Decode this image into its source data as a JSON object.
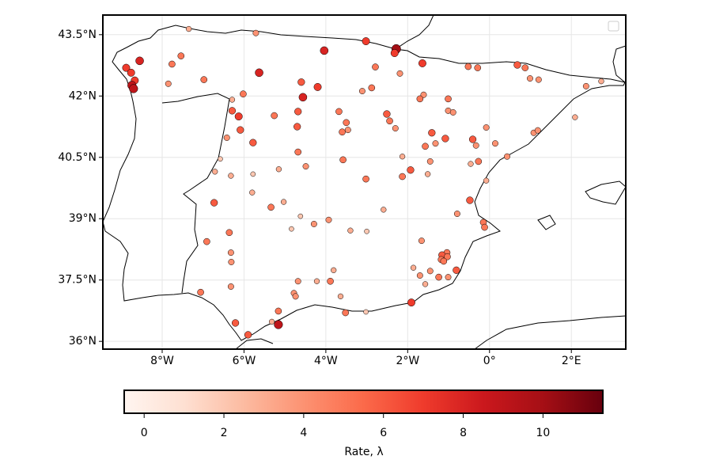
{
  "chart_data": {
    "type": "scatter",
    "x": [
      -7.35,
      -5.71,
      -3.02,
      -4.04,
      -2.28,
      -2.32,
      -1.64,
      -0.52,
      -0.29,
      0.68,
      0.87,
      0.99,
      1.2,
      2.36,
      2.73,
      -8.55,
      -8.88,
      -8.76,
      -8.67,
      -8.74,
      -8.7,
      -7.76,
      -7.54,
      -7.85,
      -6.98,
      -5.63,
      -4.6,
      -4.2,
      -4.56,
      -6.02,
      -6.29,
      -2.79,
      -2.19,
      -2.88,
      -3.11,
      -1.61,
      -1.7,
      -1.01,
      -6.29,
      -6.13,
      -5.26,
      -4.68,
      -3.68,
      -2.51,
      -2.44,
      -3.5,
      -3.46,
      -3.6,
      -2.3,
      -4.7,
      -6.09,
      -1.01,
      -0.89,
      -0.08,
      -1.41,
      -1.08,
      -1.32,
      -1.57,
      -0.41,
      -0.33,
      0.14,
      1.08,
      1.18,
      2.09,
      -6.42,
      -5.78,
      -4.68,
      -6.58,
      -3.58,
      -2.13,
      -1.45,
      -0.27,
      -0.46,
      0.43,
      -6.71,
      -6.32,
      -5.78,
      -5.15,
      -4.49,
      -1.93,
      -2.13,
      -1.51,
      -0.08,
      -3.02,
      -5.8,
      -5.03,
      -5.34,
      -6.73,
      -2.59,
      -0.48,
      -0.79,
      -4.62,
      -3.93,
      -4.29,
      -4.84,
      -3.4,
      -3.0,
      -0.15,
      -0.12,
      -6.36,
      -6.91,
      -1.66,
      -6.32,
      -6.31,
      -1.04,
      -1.16,
      -1.03,
      -1.18,
      -1.12,
      -1.86,
      -0.81,
      -3.81,
      -1.7,
      -1.45,
      -1.24,
      -1.01,
      -1.57,
      -6.32,
      -4.68,
      -4.22,
      -3.89,
      -4.78,
      -4.74,
      -3.64,
      -7.06,
      -1.91,
      -5.16,
      -3.52,
      -3.02,
      -6.21,
      -5.32,
      -5.16,
      -5.9
    ],
    "y": [
      43.64,
      43.54,
      43.34,
      43.11,
      43.15,
      43.05,
      42.8,
      42.72,
      42.69,
      42.76,
      42.69,
      42.43,
      42.4,
      42.24,
      42.36,
      42.86,
      42.69,
      42.57,
      42.38,
      42.26,
      42.18,
      42.78,
      42.98,
      42.3,
      42.4,
      42.57,
      42.34,
      42.22,
      41.97,
      42.05,
      41.91,
      42.71,
      42.55,
      42.2,
      42.12,
      42.03,
      41.93,
      41.93,
      41.64,
      41.5,
      41.52,
      41.62,
      41.62,
      41.56,
      41.39,
      41.35,
      41.17,
      41.12,
      41.21,
      41.25,
      41.17,
      41.64,
      41.6,
      41.23,
      41.1,
      40.96,
      40.84,
      40.77,
      40.94,
      40.79,
      40.84,
      41.1,
      41.16,
      41.48,
      40.98,
      40.86,
      40.63,
      40.46,
      40.44,
      40.52,
      40.4,
      40.4,
      40.34,
      40.52,
      40.15,
      40.05,
      40.09,
      40.21,
      40.28,
      40.19,
      40.03,
      40.09,
      39.93,
      39.97,
      39.64,
      39.41,
      39.28,
      39.39,
      39.22,
      39.45,
      39.12,
      39.06,
      38.97,
      38.87,
      38.75,
      38.71,
      38.69,
      38.91,
      38.79,
      38.66,
      38.44,
      38.46,
      38.17,
      37.94,
      38.17,
      38.11,
      38.07,
      38.0,
      37.96,
      37.8,
      37.74,
      37.74,
      37.61,
      37.72,
      37.57,
      37.57,
      37.4,
      37.34,
      37.47,
      37.47,
      37.47,
      37.18,
      37.1,
      37.1,
      37.2,
      36.95,
      36.74,
      36.7,
      36.72,
      36.45,
      36.48,
      36.41,
      36.16
    ],
    "values": [
      3,
      4,
      7,
      8,
      10,
      7,
      7,
      5,
      5,
      6,
      5,
      4,
      4,
      4,
      3,
      8,
      7,
      7,
      7,
      9,
      9,
      5,
      5,
      4,
      5,
      8,
      6,
      7,
      8,
      5,
      3,
      5,
      4,
      5,
      4,
      4,
      5,
      5,
      6,
      7,
      5,
      6,
      5,
      6,
      5,
      5,
      4,
      5,
      4,
      6,
      6,
      4,
      4,
      4,
      6,
      6,
      4,
      5,
      6,
      4,
      4,
      4,
      4,
      3,
      4,
      6,
      5,
      2,
      5,
      3,
      4,
      5,
      3,
      4,
      3,
      3,
      2,
      3,
      4,
      6,
      5,
      3,
      3,
      5,
      3,
      3,
      5,
      6,
      3,
      6,
      4,
      2,
      4,
      4,
      2,
      3,
      2,
      5,
      5,
      5,
      5,
      4,
      4,
      4,
      5,
      6,
      5,
      5,
      5,
      3,
      6,
      3,
      4,
      4,
      5,
      4,
      3,
      4,
      4,
      3,
      5,
      4,
      4,
      3,
      5,
      7,
      5,
      5,
      2,
      6,
      3,
      9,
      6
    ],
    "xlim": [
      -9.45,
      3.33
    ],
    "ylim": [
      35.81,
      43.98
    ],
    "xticks": [
      {
        "value": -8,
        "label": "8°W"
      },
      {
        "value": -6,
        "label": "6°W"
      },
      {
        "value": -4,
        "label": "4°W"
      },
      {
        "value": -2,
        "label": "2°W"
      },
      {
        "value": 0,
        "label": "0°"
      },
      {
        "value": 2,
        "label": "2°E"
      }
    ],
    "yticks": [
      {
        "value": 36,
        "label": "36°N"
      },
      {
        "value": 37.5,
        "label": "37.5°N"
      },
      {
        "value": 39,
        "label": "39°N"
      },
      {
        "value": 40.5,
        "label": "40.5°N"
      },
      {
        "value": 42,
        "label": "42°N"
      },
      {
        "value": 43.5,
        "label": "43.5°N"
      }
    ],
    "grid": true,
    "colormap": "Reds",
    "clim": [
      -0.5,
      11.5
    ],
    "cticks": [
      0,
      2,
      4,
      6,
      8,
      10
    ],
    "colorbar_label": "Rate, λ"
  }
}
